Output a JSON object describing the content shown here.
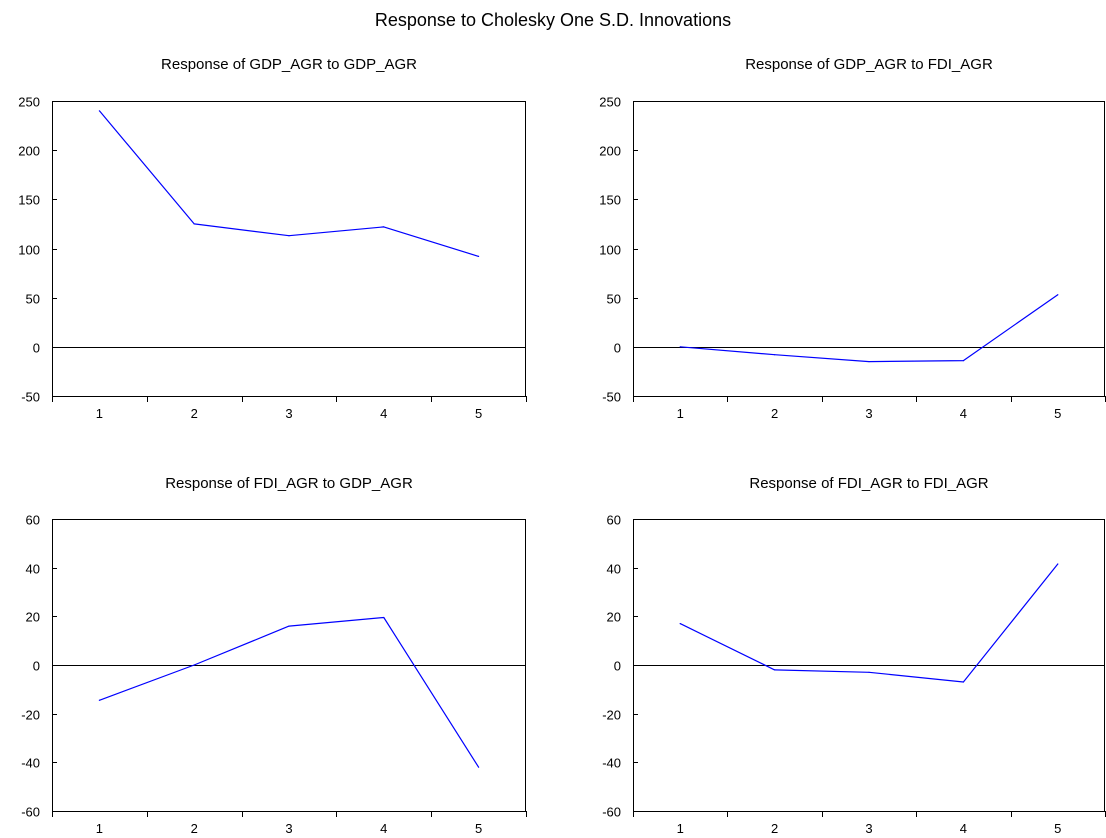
{
  "figure": {
    "title": "Response to Cholesky One S.D. Innovations"
  },
  "colors": {
    "series": "#0000ff",
    "axes": "#000000",
    "zero_line": "#000000",
    "background": "#ffffff"
  },
  "chart_data": [
    {
      "type": "line",
      "title": "Response of GDP_AGR to GDP_AGR",
      "x": [
        1,
        2,
        3,
        4,
        5
      ],
      "y": [
        240,
        125,
        113,
        122,
        92
      ],
      "xticks": [
        1,
        2,
        3,
        4,
        5
      ],
      "yticks": [
        -50,
        0,
        50,
        100,
        150,
        200,
        250
      ],
      "ylim": [
        -50,
        250
      ],
      "xlabel": "",
      "ylabel": "",
      "zero_line": true,
      "grid": false,
      "legend": "none"
    },
    {
      "type": "line",
      "title": "Response of GDP_AGR to FDI_AGR",
      "x": [
        1,
        2,
        3,
        4,
        5
      ],
      "y": [
        0,
        -8,
        -15,
        -14,
        53
      ],
      "xticks": [
        1,
        2,
        3,
        4,
        5
      ],
      "yticks": [
        -50,
        0,
        50,
        100,
        150,
        200,
        250
      ],
      "ylim": [
        -50,
        250
      ],
      "xlabel": "",
      "ylabel": "",
      "zero_line": true,
      "grid": false,
      "legend": "none"
    },
    {
      "type": "line",
      "title": "Response of FDI_AGR to GDP_AGR",
      "x": [
        1,
        2,
        3,
        4,
        5
      ],
      "y": [
        -14.5,
        0,
        16,
        19.5,
        -42
      ],
      "xticks": [
        1,
        2,
        3,
        4,
        5
      ],
      "yticks": [
        -60,
        -40,
        -20,
        0,
        20,
        40,
        60
      ],
      "ylim": [
        -60,
        60
      ],
      "xlabel": "",
      "ylabel": "",
      "zero_line": true,
      "grid": false,
      "legend": "none"
    },
    {
      "type": "line",
      "title": "Response of FDI_AGR to FDI_AGR",
      "x": [
        1,
        2,
        3,
        4,
        5
      ],
      "y": [
        17,
        -2,
        -3,
        -7,
        41.5
      ],
      "xticks": [
        1,
        2,
        3,
        4,
        5
      ],
      "yticks": [
        -60,
        -40,
        -20,
        0,
        20,
        40,
        60
      ],
      "ylim": [
        -60,
        60
      ],
      "xlabel": "",
      "ylabel": "",
      "zero_line": true,
      "grid": false,
      "legend": "none"
    }
  ]
}
